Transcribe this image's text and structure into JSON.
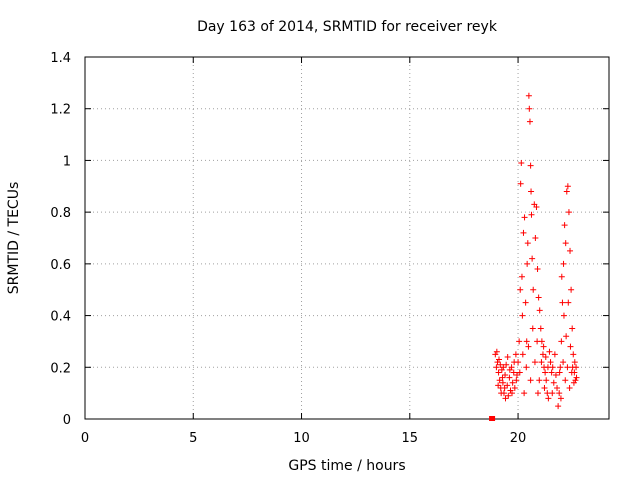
{
  "chart_data": {
    "type": "scatter",
    "title": "Day 163 of 2014, SRMTID for receiver reyk",
    "xlabel": "GPS time / hours",
    "ylabel": "SRMTID / TECUs",
    "xlim": [
      0,
      24.2
    ],
    "ylim": [
      0,
      1.4
    ],
    "x_ticks": [
      0,
      5,
      10,
      15,
      20
    ],
    "y_ticks": [
      0,
      0.2,
      0.4,
      0.6,
      0.8,
      1,
      1.2,
      1.4
    ],
    "x_tick_labels": [
      "0",
      "5",
      "10",
      "15",
      "20"
    ],
    "y_tick_labels": [
      "0",
      "0.2",
      "0.4",
      "0.6",
      "0.8",
      "1",
      "1.2",
      "1.4"
    ],
    "grid": true,
    "marker": "plus",
    "color": "#ff0000",
    "series": [
      {
        "name": "SRMTID",
        "points": [
          [
            18.8,
            0.0
          ],
          [
            18.95,
            0.25
          ],
          [
            19.0,
            0.2
          ],
          [
            19.05,
            0.22
          ],
          [
            19.1,
            0.18
          ],
          [
            19.15,
            0.15
          ],
          [
            19.2,
            0.12
          ],
          [
            19.25,
            0.19
          ],
          [
            19.3,
            0.14
          ],
          [
            19.35,
            0.1
          ],
          [
            19.4,
            0.17
          ],
          [
            19.45,
            0.21
          ],
          [
            19.5,
            0.13
          ],
          [
            19.55,
            0.09
          ],
          [
            19.6,
            0.16
          ],
          [
            19.65,
            0.11
          ],
          [
            19.7,
            0.2
          ],
          [
            19.75,
            0.14
          ],
          [
            19.8,
            0.18
          ],
          [
            19.85,
            0.12
          ],
          [
            19.9,
            0.25
          ],
          [
            19.95,
            0.17
          ],
          [
            19.02,
            0.26
          ],
          [
            19.12,
            0.23
          ],
          [
            19.22,
            0.1
          ],
          [
            19.32,
            0.2
          ],
          [
            19.42,
            0.08
          ],
          [
            19.52,
            0.24
          ],
          [
            19.62,
            0.19
          ],
          [
            19.72,
            0.1
          ],
          [
            19.82,
            0.22
          ],
          [
            19.92,
            0.15
          ],
          [
            19.08,
            0.13
          ],
          [
            19.18,
            0.21
          ],
          [
            19.28,
            0.16
          ],
          [
            19.38,
            0.12
          ],
          [
            20.0,
            0.22
          ],
          [
            20.05,
            0.3
          ],
          [
            20.1,
            0.5
          ],
          [
            20.12,
            0.91
          ],
          [
            20.15,
            0.99
          ],
          [
            20.18,
            0.55
          ],
          [
            20.2,
            0.4
          ],
          [
            20.25,
            0.72
          ],
          [
            20.3,
            0.78
          ],
          [
            20.35,
            0.45
          ],
          [
            20.4,
            0.3
          ],
          [
            20.42,
            0.6
          ],
          [
            20.45,
            0.68
          ],
          [
            20.5,
            1.25
          ],
          [
            20.52,
            1.2
          ],
          [
            20.55,
            1.15
          ],
          [
            20.58,
            0.98
          ],
          [
            20.6,
            0.88
          ],
          [
            20.62,
            0.79
          ],
          [
            20.65,
            0.62
          ],
          [
            20.7,
            0.5
          ],
          [
            20.75,
            0.83
          ],
          [
            20.8,
            0.7
          ],
          [
            20.85,
            0.82
          ],
          [
            20.9,
            0.58
          ],
          [
            20.95,
            0.47
          ],
          [
            21.0,
            0.42
          ],
          [
            21.05,
            0.35
          ],
          [
            21.1,
            0.3
          ],
          [
            21.15,
            0.25
          ],
          [
            21.2,
            0.2
          ],
          [
            21.25,
            0.18
          ],
          [
            21.3,
            0.15
          ],
          [
            21.35,
            0.1
          ],
          [
            21.4,
            0.08
          ],
          [
            20.08,
            0.18
          ],
          [
            20.22,
            0.25
          ],
          [
            20.38,
            0.2
          ],
          [
            20.48,
            0.28
          ],
          [
            20.68,
            0.35
          ],
          [
            20.78,
            0.22
          ],
          [
            20.88,
            0.3
          ],
          [
            20.98,
            0.15
          ],
          [
            21.08,
            0.22
          ],
          [
            21.18,
            0.28
          ],
          [
            21.28,
            0.24
          ],
          [
            21.38,
            0.2
          ],
          [
            21.45,
            0.26
          ],
          [
            21.5,
            0.22
          ],
          [
            21.55,
            0.18
          ],
          [
            21.6,
            0.2
          ],
          [
            21.65,
            0.14
          ],
          [
            21.7,
            0.25
          ],
          [
            21.75,
            0.17
          ],
          [
            21.8,
            0.12
          ],
          [
            21.85,
            0.05
          ],
          [
            21.9,
            0.1
          ],
          [
            21.95,
            0.2
          ],
          [
            22.0,
            0.3
          ],
          [
            22.05,
            0.45
          ],
          [
            22.1,
            0.6
          ],
          [
            22.15,
            0.75
          ],
          [
            22.2,
            0.68
          ],
          [
            22.25,
            0.88
          ],
          [
            22.3,
            0.9
          ],
          [
            22.35,
            0.8
          ],
          [
            22.4,
            0.65
          ],
          [
            22.45,
            0.5
          ],
          [
            22.5,
            0.35
          ],
          [
            22.55,
            0.25
          ],
          [
            22.6,
            0.18
          ],
          [
            22.65,
            0.15
          ],
          [
            22.7,
            0.16
          ],
          [
            22.02,
            0.55
          ],
          [
            22.12,
            0.4
          ],
          [
            22.22,
            0.32
          ],
          [
            22.32,
            0.45
          ],
          [
            22.42,
            0.28
          ],
          [
            22.52,
            0.2
          ],
          [
            22.62,
            0.22
          ],
          [
            21.92,
            0.18
          ],
          [
            21.98,
            0.08
          ],
          [
            22.08,
            0.22
          ],
          [
            22.18,
            0.15
          ],
          [
            22.28,
            0.2
          ],
          [
            22.38,
            0.12
          ],
          [
            22.48,
            0.18
          ],
          [
            22.58,
            0.14
          ],
          [
            22.68,
            0.2
          ],
          [
            20.28,
            0.1
          ],
          [
            20.58,
            0.15
          ],
          [
            20.92,
            0.1
          ],
          [
            21.22,
            0.12
          ],
          [
            21.58,
            0.1
          ]
        ]
      }
    ]
  }
}
